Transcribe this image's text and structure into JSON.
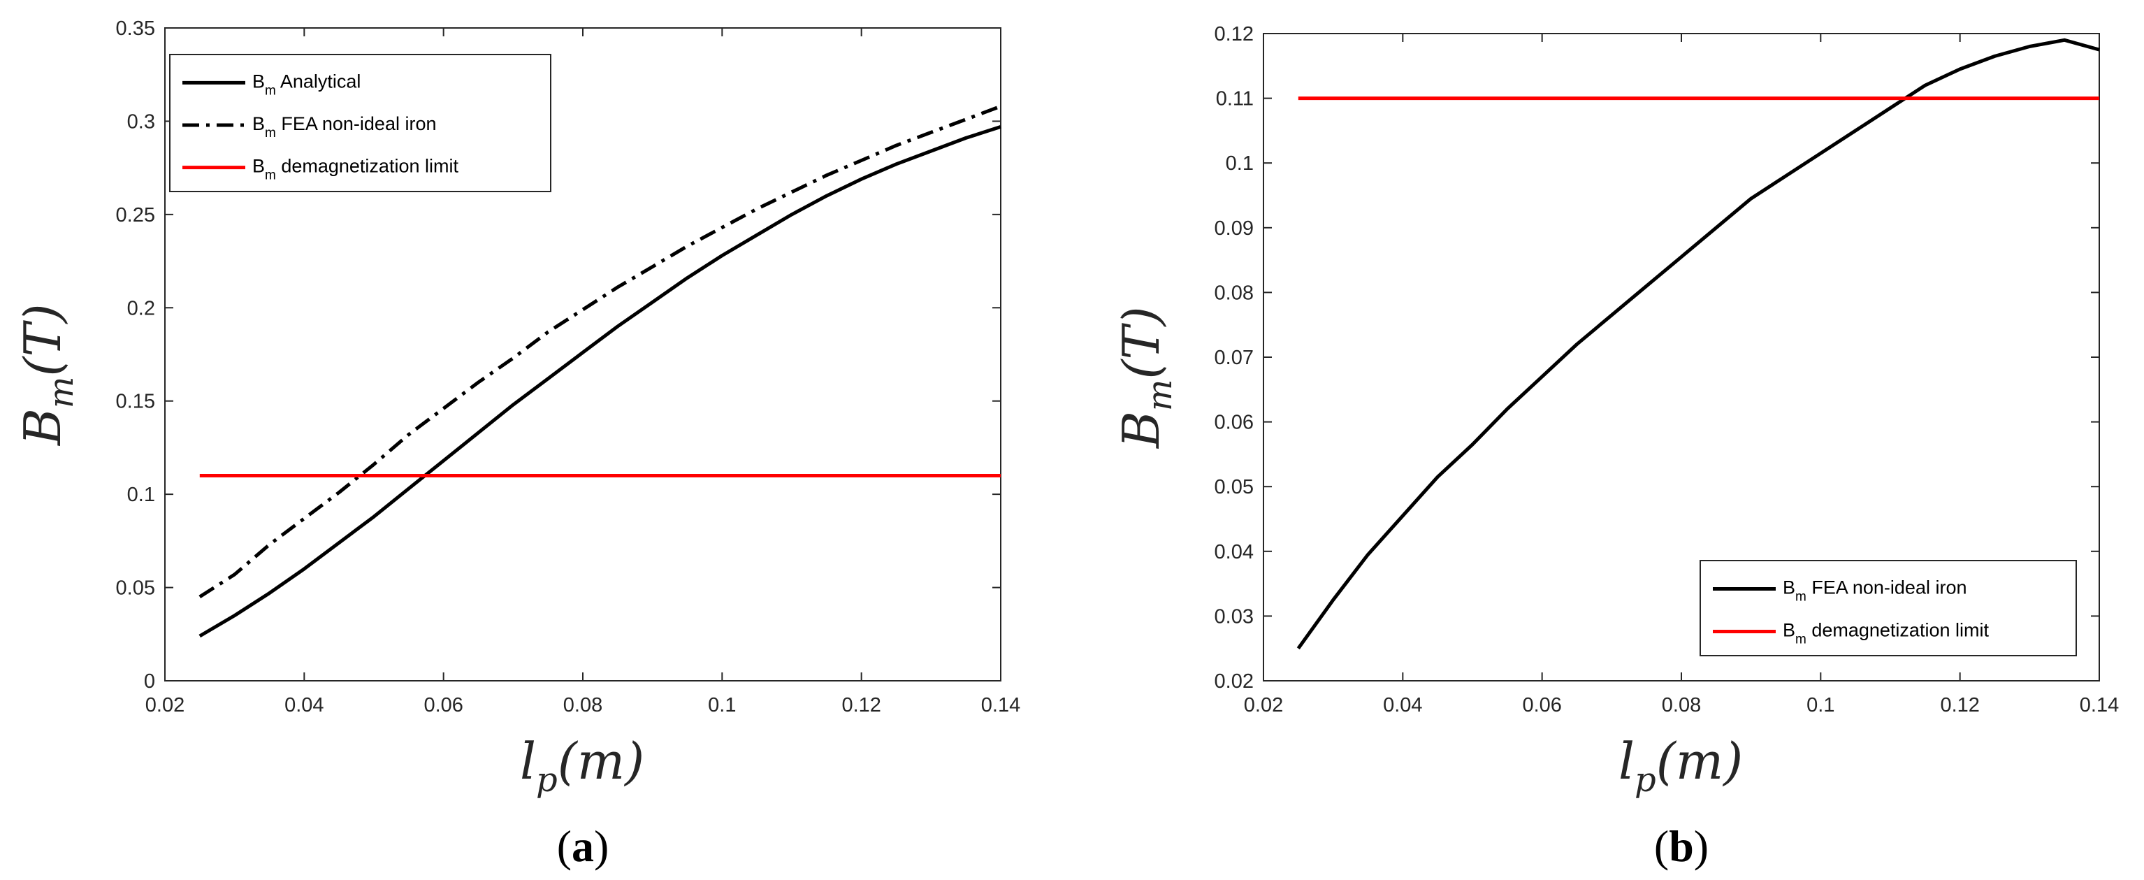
{
  "chart_data": [
    {
      "type": "line",
      "panel_label": "a",
      "xlabel": {
        "main": "l",
        "sub": "p",
        "rest": "(m)"
      },
      "ylabel": {
        "main": "B",
        "sub": "m",
        "rest": "(T)"
      },
      "xlim": [
        0.02,
        0.14
      ],
      "ylim": [
        0,
        0.35
      ],
      "xticks": [
        "0.02",
        "0.04",
        "0.06",
        "0.08",
        "0.1",
        "0.12",
        "0.14"
      ],
      "yticks": [
        "0",
        "0.05",
        "0.1",
        "0.15",
        "0.2",
        "0.25",
        "0.3",
        "0.35"
      ],
      "legend_position": "top-left",
      "grid": false,
      "series": [
        {
          "legend": {
            "main": "B",
            "sub": "m",
            "rest": " Analytical"
          },
          "style": "solid",
          "color": "#000000",
          "x": [
            0.025,
            0.03,
            0.035,
            0.04,
            0.045,
            0.05,
            0.055,
            0.06,
            0.065,
            0.07,
            0.075,
            0.08,
            0.085,
            0.09,
            0.095,
            0.1,
            0.105,
            0.11,
            0.115,
            0.12,
            0.125,
            0.13,
            0.135,
            0.14
          ],
          "y": [
            0.024,
            0.035,
            0.047,
            0.06,
            0.074,
            0.088,
            0.103,
            0.118,
            0.133,
            0.148,
            0.162,
            0.176,
            0.19,
            0.203,
            0.216,
            0.228,
            0.239,
            0.25,
            0.26,
            0.269,
            0.277,
            0.284,
            0.291,
            0.297
          ]
        },
        {
          "legend": {
            "main": "B",
            "sub": "m",
            "rest": " FEA non-ideal iron"
          },
          "style": "dashdot",
          "color": "#000000",
          "x": [
            0.025,
            0.03,
            0.035,
            0.04,
            0.045,
            0.05,
            0.055,
            0.06,
            0.065,
            0.07,
            0.075,
            0.08,
            0.085,
            0.09,
            0.095,
            0.1,
            0.105,
            0.11,
            0.115,
            0.12,
            0.125,
            0.13,
            0.135,
            0.14
          ],
          "y": [
            0.045,
            0.057,
            0.073,
            0.087,
            0.101,
            0.116,
            0.132,
            0.146,
            0.16,
            0.173,
            0.187,
            0.199,
            0.211,
            0.222,
            0.233,
            0.243,
            0.253,
            0.262,
            0.271,
            0.279,
            0.287,
            0.294,
            0.301,
            0.308
          ]
        },
        {
          "legend": {
            "main": "B",
            "sub": "m",
            "rest": " demagnetization limit"
          },
          "style": "solid",
          "color": "#ff0000",
          "x": [
            0.025,
            0.14
          ],
          "y": [
            0.11,
            0.11
          ]
        }
      ]
    },
    {
      "type": "line",
      "panel_label": "b",
      "xlabel": {
        "main": "l",
        "sub": "p",
        "rest": "(m)"
      },
      "ylabel": {
        "main": "B",
        "sub": "m",
        "rest": "(T)"
      },
      "xlim": [
        0.02,
        0.14
      ],
      "ylim": [
        0.02,
        0.12
      ],
      "xticks": [
        "0.02",
        "0.04",
        "0.06",
        "0.08",
        "0.1",
        "0.12",
        "0.14"
      ],
      "yticks": [
        "0.02",
        "0.03",
        "0.04",
        "0.05",
        "0.06",
        "0.07",
        "0.08",
        "0.09",
        "0.1",
        "0.11",
        "0.12"
      ],
      "legend_position": "bottom-right",
      "grid": false,
      "series": [
        {
          "legend": {
            "main": "B",
            "sub": "m",
            "rest": " FEA non-ideal iron"
          },
          "style": "solid",
          "color": "#000000",
          "x": [
            0.025,
            0.03,
            0.035,
            0.04,
            0.045,
            0.05,
            0.055,
            0.06,
            0.065,
            0.07,
            0.075,
            0.08,
            0.085,
            0.09,
            0.095,
            0.1,
            0.105,
            0.11,
            0.115,
            0.12,
            0.125,
            0.13,
            0.135,
            0.14
          ],
          "y": [
            0.025,
            0.0325,
            0.0395,
            0.0455,
            0.0515,
            0.0565,
            0.062,
            0.067,
            0.072,
            0.0765,
            0.081,
            0.0855,
            0.09,
            0.0945,
            0.098,
            0.1015,
            0.105,
            0.1085,
            0.112,
            0.1145,
            0.1165,
            0.118,
            0.119,
            0.1175
          ]
        },
        {
          "legend": {
            "main": "B",
            "sub": "m",
            "rest": " demagnetization limit"
          },
          "style": "solid",
          "color": "#ff0000",
          "x": [
            0.025,
            0.14
          ],
          "y": [
            0.11,
            0.11
          ]
        }
      ]
    }
  ]
}
